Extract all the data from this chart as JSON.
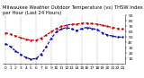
{
  "title": "Milwaukee Weather Outdoor Temperature (vs) THSW Index per Hour (Last 24 Hours)",
  "hours": [
    0,
    1,
    2,
    3,
    4,
    5,
    6,
    7,
    8,
    9,
    10,
    11,
    12,
    13,
    14,
    15,
    16,
    17,
    18,
    19,
    20,
    21,
    22,
    23
  ],
  "temp": [
    58,
    55,
    52,
    49,
    46,
    44,
    44,
    48,
    54,
    60,
    66,
    70,
    72,
    74,
    74,
    76,
    76,
    75,
    74,
    72,
    70,
    68,
    66,
    65
  ],
  "thsw": [
    38,
    32,
    24,
    18,
    12,
    9,
    10,
    18,
    32,
    48,
    60,
    65,
    68,
    65,
    62,
    66,
    68,
    66,
    64,
    58,
    54,
    52,
    50,
    50
  ],
  "temp_color": "#cc0000",
  "thsw_color": "#0000cc",
  "bg_color": "#ffffff",
  "grid_color": "#888888",
  "ylim_min": 0,
  "ylim_max": 90,
  "ytick_vals": [
    10,
    20,
    30,
    40,
    50,
    60,
    70,
    80,
    90
  ],
  "ytick_labels": [
    "1",
    "2",
    "3",
    "4",
    "5",
    "6",
    "7",
    "8",
    "9"
  ],
  "vgrid_hours": [
    0,
    3,
    6,
    9,
    12,
    15,
    18,
    21
  ],
  "title_fontsize": 3.8,
  "tick_fontsize": 3.2,
  "linewidth": 0.9,
  "markersize": 1.5
}
